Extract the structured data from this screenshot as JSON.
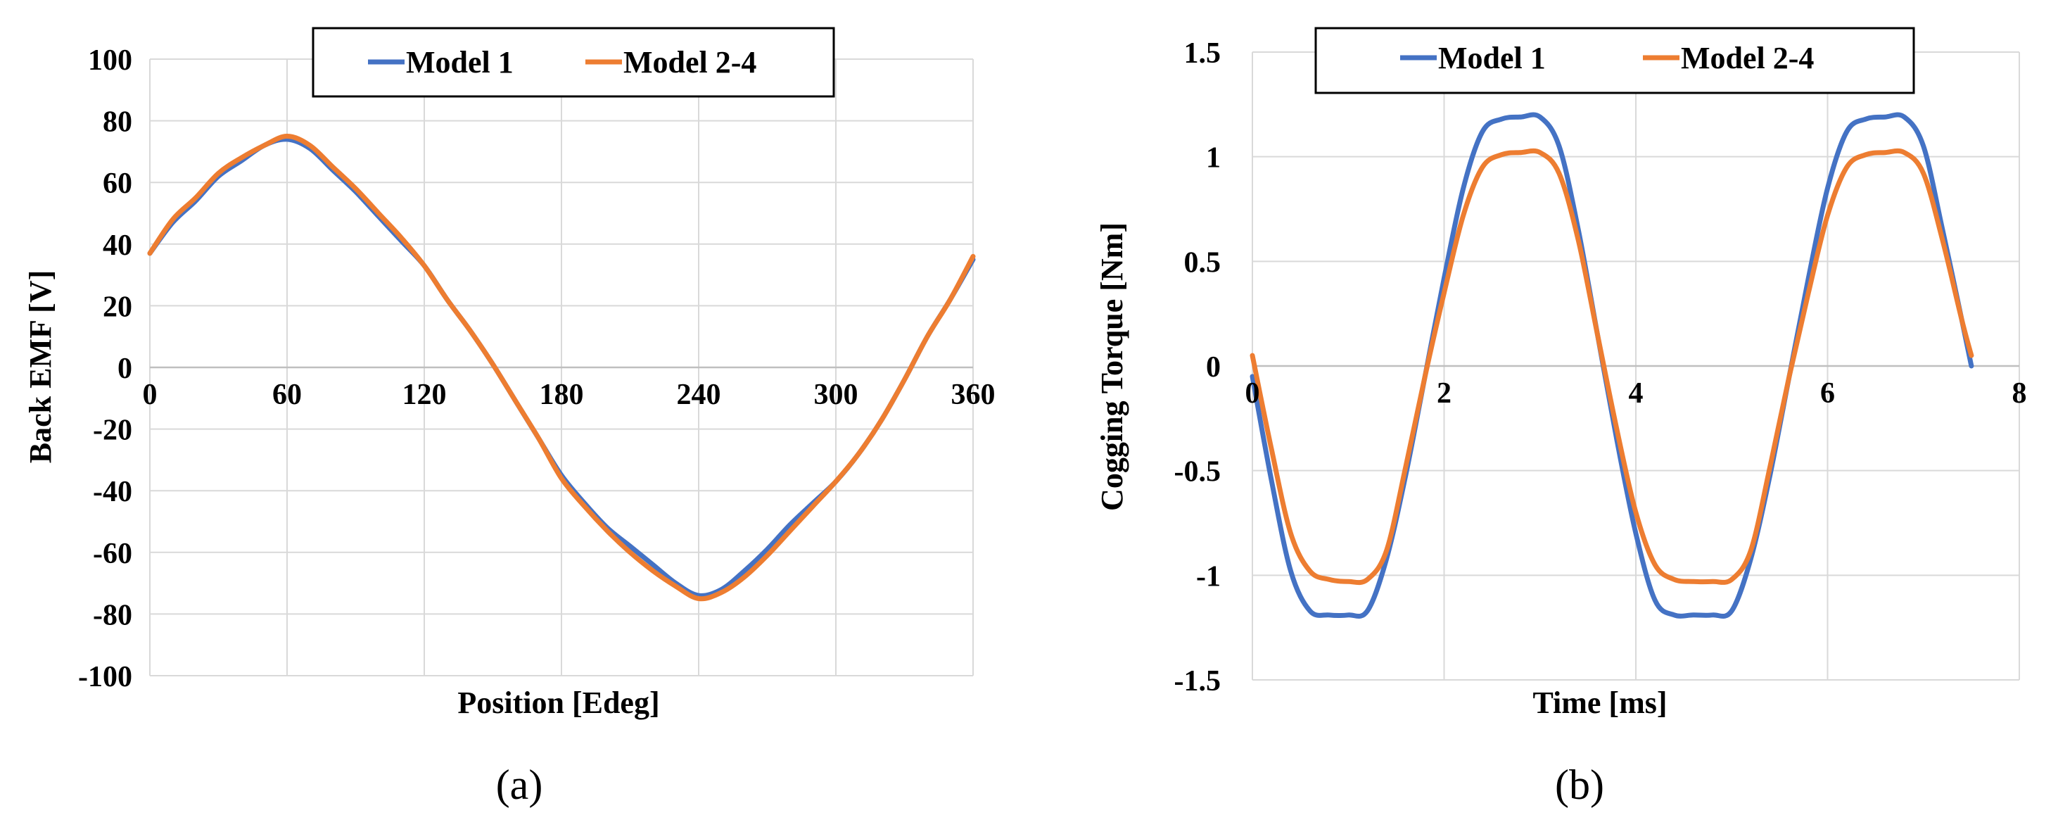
{
  "chart_data": [
    {
      "panel_label": "(a)",
      "type": "line",
      "xlabel": "Position [Edeg]",
      "ylabel": "Back EMF [V]",
      "xlim": [
        0,
        360
      ],
      "ylim": [
        -100,
        100
      ],
      "xticks": [
        "0",
        "60",
        "120",
        "180",
        "240",
        "300",
        "360"
      ],
      "xtick_values": [
        0,
        60,
        120,
        180,
        240,
        300,
        360
      ],
      "yticks": [
        "100",
        "80",
        "60",
        "40",
        "20",
        "0",
        "-20",
        "-40",
        "-60",
        "-80",
        "-100"
      ],
      "ytick_values": [
        100,
        80,
        60,
        40,
        20,
        0,
        -20,
        -40,
        -60,
        -80,
        -100
      ],
      "legend": [
        "Model 1",
        "Model 2-4"
      ],
      "legend_position": "top-center",
      "colors": {
        "Model 1": "#4472C4",
        "Model 2-4": "#ED7D31"
      },
      "series": [
        {
          "name": "Model 1",
          "x": [
            0,
            10,
            20,
            30,
            40,
            50,
            60,
            70,
            80,
            90,
            100,
            110,
            120,
            130,
            140,
            150,
            160,
            170,
            180,
            190,
            200,
            210,
            220,
            230,
            240,
            250,
            260,
            270,
            280,
            290,
            300,
            310,
            320,
            330,
            340,
            350,
            360
          ],
          "values": [
            37,
            47,
            54,
            62,
            67,
            72,
            74,
            71,
            64,
            57,
            49,
            41,
            33,
            22,
            12,
            1,
            -11,
            -23,
            -35,
            -44,
            -52,
            -58,
            -64,
            -70,
            -74,
            -72,
            -66,
            -59,
            -51,
            -44,
            -37,
            -28,
            -17,
            -4,
            10,
            22,
            35
          ]
        },
        {
          "name": "Model 2-4",
          "x": [
            0,
            10,
            20,
            30,
            40,
            50,
            60,
            70,
            80,
            90,
            100,
            110,
            120,
            130,
            140,
            150,
            160,
            170,
            180,
            190,
            200,
            210,
            220,
            230,
            240,
            250,
            260,
            270,
            280,
            290,
            300,
            310,
            320,
            330,
            340,
            350,
            360
          ],
          "values": [
            37,
            48,
            55,
            63,
            68,
            72,
            75,
            72,
            65,
            58,
            50,
            42,
            33,
            22,
            12,
            1,
            -11,
            -23,
            -36,
            -45,
            -53,
            -60,
            -66,
            -71,
            -75,
            -73,
            -68,
            -61,
            -53,
            -45,
            -37,
            -28,
            -17,
            -4,
            10,
            22,
            36
          ]
        }
      ]
    },
    {
      "panel_label": "(b)",
      "type": "line",
      "xlabel": "Time [ms]",
      "ylabel": "Cogging Torque [Nm]",
      "xlim": [
        0,
        8
      ],
      "ylim": [
        -1.5,
        1.5
      ],
      "xticks": [
        "0",
        "2",
        "4",
        "6",
        "8"
      ],
      "xtick_values": [
        0,
        2,
        4,
        6,
        8
      ],
      "yticks": [
        "1.5",
        "1",
        "0.5",
        "0",
        "-0.5",
        "-1",
        "-1.5"
      ],
      "ytick_values": [
        1.5,
        1,
        0.5,
        0,
        -0.5,
        -1,
        -1.5
      ],
      "legend": [
        "Model 1",
        "Model 2-4"
      ],
      "legend_position": "top-center",
      "colors": {
        "Model 1": "#4472C4",
        "Model 2-4": "#ED7D31"
      },
      "series": [
        {
          "name": "Model 1",
          "x": [
            0,
            0.2,
            0.4,
            0.6,
            0.8,
            1.0,
            1.2,
            1.4,
            1.6,
            1.8,
            2.0,
            2.2,
            2.4,
            2.6,
            2.8,
            3.0,
            3.2,
            3.4,
            3.6,
            3.8,
            4.0,
            4.2,
            4.4,
            4.6,
            4.8,
            5.0,
            5.2,
            5.4,
            5.6,
            5.8,
            6.0,
            6.2,
            6.4,
            6.6,
            6.8,
            7.0,
            7.2,
            7.4,
            7.5
          ],
          "values": [
            -0.05,
            -0.55,
            -0.98,
            -1.17,
            -1.19,
            -1.19,
            -1.17,
            -0.92,
            -0.52,
            -0.05,
            0.42,
            0.85,
            1.12,
            1.18,
            1.19,
            1.19,
            1.05,
            0.65,
            0.15,
            -0.35,
            -0.8,
            -1.12,
            -1.19,
            -1.19,
            -1.19,
            -1.17,
            -0.92,
            -0.52,
            -0.05,
            0.42,
            0.85,
            1.12,
            1.18,
            1.19,
            1.19,
            1.05,
            0.65,
            0.22,
            0.0
          ]
        },
        {
          "name": "Model 2-4",
          "x": [
            0,
            0.2,
            0.4,
            0.6,
            0.8,
            1.0,
            1.2,
            1.4,
            1.6,
            1.8,
            2.0,
            2.2,
            2.4,
            2.6,
            2.8,
            3.0,
            3.2,
            3.4,
            3.6,
            3.8,
            4.0,
            4.2,
            4.4,
            4.6,
            4.8,
            5.0,
            5.2,
            5.4,
            5.6,
            5.8,
            6.0,
            6.2,
            6.4,
            6.6,
            6.8,
            7.0,
            7.2,
            7.4,
            7.5
          ],
          "values": [
            0.05,
            -0.4,
            -0.8,
            -0.98,
            -1.02,
            -1.03,
            -1.02,
            -0.88,
            -0.48,
            -0.05,
            0.35,
            0.72,
            0.95,
            1.01,
            1.02,
            1.02,
            0.92,
            0.6,
            0.15,
            -0.3,
            -0.7,
            -0.95,
            -1.02,
            -1.03,
            -1.03,
            -1.02,
            -0.88,
            -0.48,
            -0.05,
            0.35,
            0.72,
            0.95,
            1.01,
            1.02,
            1.02,
            0.92,
            0.6,
            0.22,
            0.05
          ]
        }
      ]
    }
  ]
}
